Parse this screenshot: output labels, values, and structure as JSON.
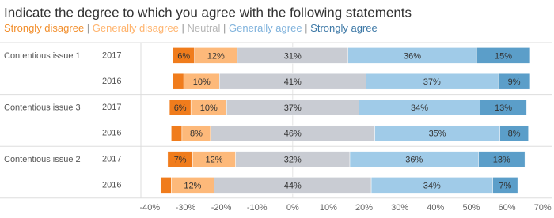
{
  "chart_data": {
    "type": "diverging_bar",
    "title": "Indicate the degree to which you agree with the following statements",
    "legend_separator": "|",
    "groups": [
      "Contentious issue 1",
      "Contentious issue 3",
      "Contentious issue 2"
    ],
    "categories": [
      "2017",
      "2016",
      "2017",
      "2016",
      "2017",
      "2016"
    ],
    "series": [
      {
        "name": "Strongly disagree",
        "color": "#f07c1c",
        "text_color": "#f28e2b",
        "values": [
          6,
          3,
          6,
          3,
          7,
          3
        ],
        "value_labels": [
          "6%",
          null,
          "6%",
          null,
          "7%",
          null
        ]
      },
      {
        "name": "Generally disagree",
        "color": "#fdb97a",
        "text_color": "#ffb46e",
        "values": [
          12,
          10,
          10,
          8,
          12,
          12
        ],
        "value_labels": [
          "12%",
          "10%",
          "10%",
          "8%",
          "12%",
          "12%"
        ]
      },
      {
        "name": "Neutral",
        "color": "#c9ccd3",
        "text_color": "#b5b5b5",
        "values": [
          31,
          41,
          37,
          46,
          32,
          44
        ],
        "value_labels": [
          "31%",
          "41%",
          "37%",
          "46%",
          "32%",
          "44%"
        ]
      },
      {
        "name": "Generally agree",
        "color": "#a0cbe8",
        "text_color": "#7fb2dc",
        "values": [
          36,
          37,
          34,
          35,
          36,
          34
        ],
        "value_labels": [
          "36%",
          "37%",
          "34%",
          "35%",
          "36%",
          "34%"
        ]
      },
      {
        "name": "Strongly agree",
        "color": "#5b9ec9",
        "text_color": "#3d78a6",
        "values": [
          15,
          9,
          13,
          8,
          13,
          7
        ],
        "value_labels": [
          "15%",
          "9%",
          "13%",
          "8%",
          "13%",
          "7%"
        ]
      }
    ],
    "neutral_series": 2,
    "xlim": [
      -42.5,
      72.5
    ],
    "xticks": [
      {
        "value": -40,
        "label": "-40%"
      },
      {
        "value": -30,
        "label": "-30%"
      },
      {
        "value": -20,
        "label": "-20%"
      },
      {
        "value": -10,
        "label": "-10%"
      },
      {
        "value": 0,
        "label": "0%"
      },
      {
        "value": 10,
        "label": "10%"
      },
      {
        "value": 20,
        "label": "20%"
      },
      {
        "value": 30,
        "label": "30%"
      },
      {
        "value": 40,
        "label": "40%"
      },
      {
        "value": 50,
        "label": "50%"
      },
      {
        "value": 60,
        "label": "60%"
      },
      {
        "value": 70,
        "label": "70%"
      }
    ]
  }
}
